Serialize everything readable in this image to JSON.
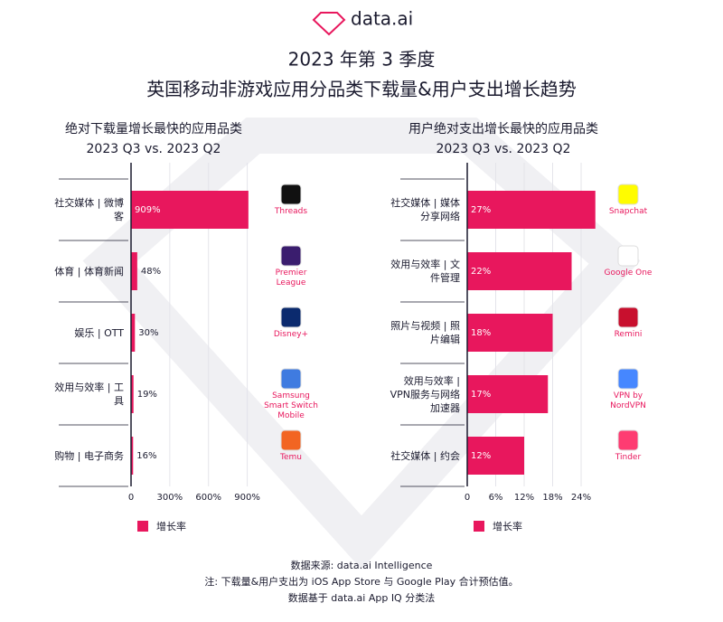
{
  "header": {
    "logo": "data.ai",
    "title": "2023 年第 3 季度",
    "subtitle": "英国移动非游戏应用分品类下载量&用户支出增长趋势"
  },
  "chart_data": [
    {
      "type": "bar",
      "orientation": "horizontal",
      "title": "绝对下载量增长最快的应用品类",
      "subtitle": "2023 Q3 vs. 2023 Q2",
      "categories": [
        "社交媒体 | 微博客",
        "体育 | 体育新闻",
        "娱乐 | OTT",
        "效用与效率 | 工具",
        "购物 | 电子商务"
      ],
      "series": [
        {
          "name": "增长率",
          "color": "#e8175d",
          "values": [
            909,
            48,
            30,
            19,
            16
          ],
          "value_labels": [
            "909%",
            "48%",
            "30%",
            "19%",
            "16%"
          ]
        }
      ],
      "apps": [
        "Threads",
        "Premier League",
        "Disney+",
        "Samsung Smart Switch Mobile",
        "Temu"
      ],
      "xlim": [
        0,
        910
      ],
      "xticks": [
        0,
        {
          "value": 300,
          "label": "300%"
        },
        {
          "value": 600,
          "label": "600%"
        },
        {
          "value": 900,
          "label": "900%"
        }
      ],
      "grid": true
    },
    {
      "type": "bar",
      "orientation": "horizontal",
      "title": "用户绝对支出增长最快的应用品类",
      "subtitle": "2023 Q3 vs. 2023 Q2",
      "categories": [
        "社交媒体 | 媒体分享网络",
        "效用与效率 | 文件管理",
        "照片与视频 | 照片编辑",
        "效用与效率 | VPN服务与网络加速器",
        "社交媒体 | 约会"
      ],
      "series": [
        {
          "name": "增长率",
          "color": "#e8175d",
          "values": [
            27,
            22,
            18,
            17,
            12
          ],
          "value_labels": [
            "27%",
            "22%",
            "18%",
            "17%",
            "12%"
          ]
        }
      ],
      "apps": [
        "Snapchat",
        "Google One",
        "Remini",
        "VPN by NordVPN",
        "Tinder"
      ],
      "xlim": [
        0,
        28
      ],
      "xticks": [
        0,
        {
          "value": 6,
          "label": "6%"
        },
        {
          "value": 12,
          "label": "12%"
        },
        {
          "value": 18,
          "label": "18%"
        },
        {
          "value": 24,
          "label": "24%"
        }
      ],
      "grid": true
    }
  ],
  "footer": [
    "数据来源: data.ai Intelligence",
    "注: 下载量&用户支出为 iOS App Store 与 Google Play 合计预估值。",
    "数据基于 data.ai App IQ 分类法"
  ]
}
